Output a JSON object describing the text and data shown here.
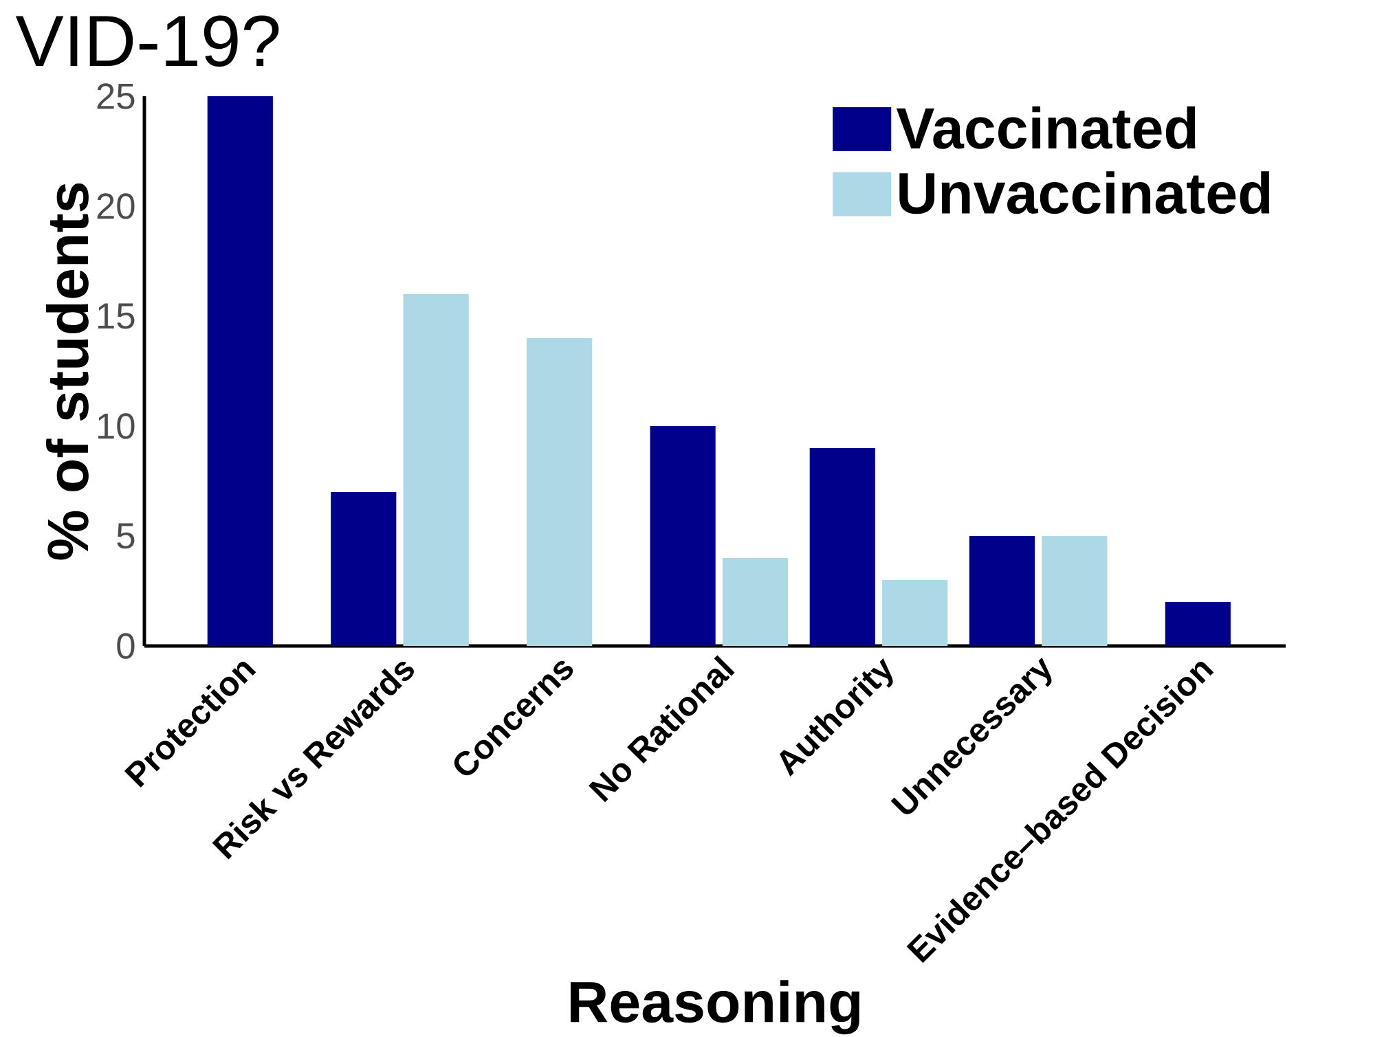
{
  "chart_data": {
    "type": "bar",
    "title": "VID-19?",
    "xlabel": "Reasoning",
    "ylabel": "% of students",
    "categories": [
      "Protection",
      "Risk vs Rewards",
      "Concerns",
      "No Rational",
      "Authority",
      "Unnecessary",
      "Evidence–based Decision"
    ],
    "series": [
      {
        "name": "Vaccinated",
        "color": "#00008b",
        "values": [
          25,
          7,
          null,
          10,
          9,
          5,
          2
        ]
      },
      {
        "name": "Unvaccinated",
        "color": "#add8e6",
        "values": [
          null,
          16,
          14,
          4,
          3,
          5,
          null
        ]
      }
    ],
    "ylim": [
      0,
      25
    ],
    "yticks": [
      0,
      5,
      10,
      15,
      20,
      25
    ],
    "legend": "top right"
  }
}
